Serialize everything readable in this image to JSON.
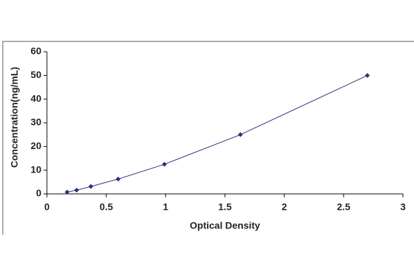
{
  "chart_data": {
    "type": "line",
    "x_label": "Optical Density",
    "y_label": "Concentration(ng/mL)",
    "x": [
      0.17,
      0.25,
      0.37,
      0.6,
      0.99,
      1.63,
      2.7
    ],
    "series": [
      {
        "color": "#2b2f7a",
        "values": [
          0.78,
          1.56,
          3.12,
          6.25,
          12.5,
          25,
          50
        ]
      }
    ],
    "xlim": [
      0,
      3
    ],
    "xticks": [
      0,
      0.5,
      1,
      1.5,
      2,
      2.5,
      3
    ],
    "ylim": [
      0,
      60
    ],
    "yticks": [
      0,
      10,
      20,
      30,
      40,
      50,
      60
    ]
  }
}
